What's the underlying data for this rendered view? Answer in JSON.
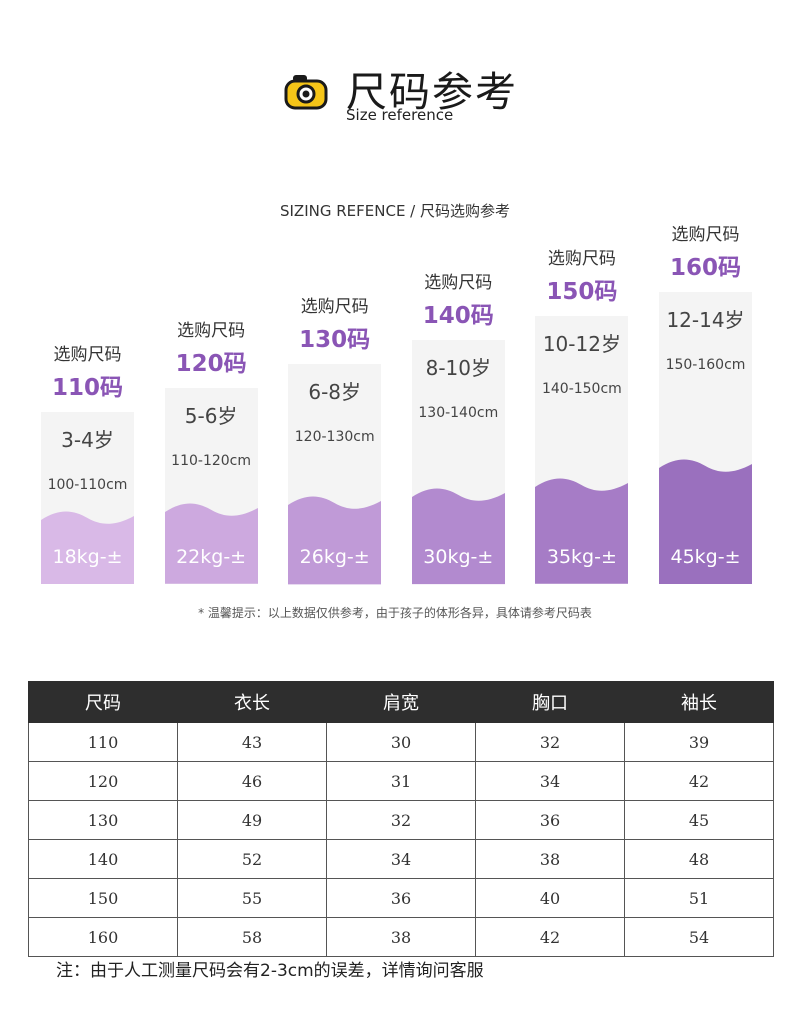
{
  "header": {
    "title": "尺码参考",
    "subtitle": "Size reference",
    "icon": "camera-icon",
    "icon_color": "#f5c518"
  },
  "chart_data": {
    "type": "bar",
    "title": "SIZING REFENCE / 尺码选购参考",
    "label_prefix": "选购尺码",
    "categories": [
      "110码",
      "120码",
      "130码",
      "140码",
      "150码",
      "160码"
    ],
    "ages": [
      "3-4岁",
      "5-6岁",
      "6-8岁",
      "8-10岁",
      "10-12岁",
      "12-14岁"
    ],
    "heights": [
      "100-110cm",
      "110-120cm",
      "120-130cm",
      "130-140cm",
      "140-150cm",
      "150-160cm"
    ],
    "weight_labels": [
      "18kg-±",
      "22kg-±",
      "26kg-±",
      "30kg-±",
      "35kg-±",
      "45kg-±"
    ],
    "series": [
      {
        "values": [
          18,
          22,
          26,
          30,
          35,
          45
        ]
      }
    ],
    "colors": [
      "#d9b9e7",
      "#cda9df",
      "#c09ad7",
      "#b28acf",
      "#a67cc6",
      "#9a70be"
    ],
    "note": "* 温馨提示：以上数据仅供参考，由于孩子的体形各异，具体请参考尺码表"
  },
  "table": {
    "headers": [
      "尺码",
      "衣长",
      "肩宽",
      "胸口",
      "袖长"
    ],
    "rows": [
      [
        "110",
        "43",
        "30",
        "32",
        "39"
      ],
      [
        "120",
        "46",
        "31",
        "34",
        "42"
      ],
      [
        "130",
        "49",
        "32",
        "36",
        "45"
      ],
      [
        "140",
        "52",
        "34",
        "38",
        "48"
      ],
      [
        "150",
        "55",
        "36",
        "40",
        "51"
      ],
      [
        "160",
        "58",
        "38",
        "42",
        "54"
      ]
    ]
  },
  "footer": {
    "note": "注：由于人工测量尺码会有2-3cm的误差，详情询问客服"
  }
}
